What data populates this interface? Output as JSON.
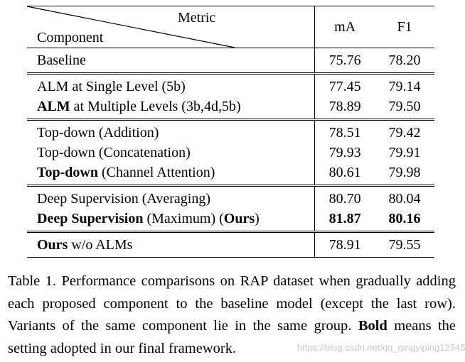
{
  "table": {
    "header": {
      "metric_label": "Metric",
      "component_label": "Component",
      "col_ma": "mA",
      "col_f1": "F1"
    },
    "groups": [
      [
        {
          "bold": "",
          "text": "Baseline",
          "ma": "75.76",
          "f1": "78.20",
          "bold_values": false
        }
      ],
      [
        {
          "bold": "",
          "text": "ALM at Single Level (5b)",
          "ma": "77.45",
          "f1": "79.14",
          "bold_values": false
        },
        {
          "bold": "ALM",
          "text": " at Multiple Levels (3b,4d,5b)",
          "ma": "78.89",
          "f1": "79.50",
          "bold_values": false
        }
      ],
      [
        {
          "bold": "",
          "text": "Top-down (Addition)",
          "ma": "78.51",
          "f1": "79.42",
          "bold_values": false
        },
        {
          "bold": "",
          "text": "Top-down (Concatenation)",
          "ma": "79.93",
          "f1": "79.91",
          "bold_values": false
        },
        {
          "bold": "Top-down",
          "text": " (Channel Attention)",
          "ma": "80.61",
          "f1": "79.98",
          "bold_values": false
        }
      ],
      [
        {
          "bold": "",
          "text": "Deep Supervision (Averaging)",
          "ma": "80.70",
          "f1": "80.04",
          "bold_values": false
        },
        {
          "bold": "Deep Supervision",
          "text": " (Maximum) (",
          "bold2": "Ours",
          "text2": ")",
          "ma": "81.87",
          "f1": "80.16",
          "bold_values": true
        }
      ],
      [
        {
          "bold": "Ours",
          "text": " w/o ALMs",
          "ma": "78.91",
          "f1": "79.55",
          "bold_values": false
        }
      ]
    ]
  },
  "caption": {
    "main": "Table 1. Performance comparisons on RAP dataset when gradually adding each proposed component to the baseline model (except the last row). Variants of the same component lie in the same group.",
    "bold_word": "Bold",
    "rest": " means the setting adopted in our final framework."
  },
  "watermark": "https://blog.csdn.net/qq_qingyiping12345"
}
